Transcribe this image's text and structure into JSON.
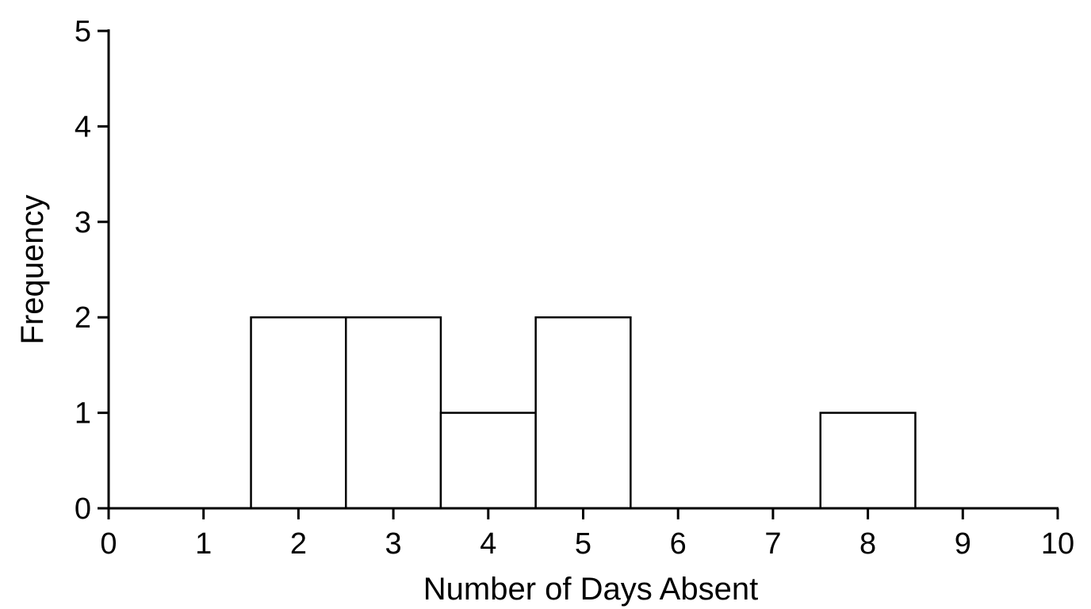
{
  "chart_data": {
    "type": "bar",
    "subtype": "histogram",
    "title": "",
    "xlabel": "Number of Days Absent",
    "ylabel": "Frequency",
    "xlim": [
      0,
      10
    ],
    "ylim": [
      0,
      5
    ],
    "x_ticks": [
      "0",
      "1",
      "2",
      "3",
      "4",
      "5",
      "6",
      "7",
      "8",
      "9",
      "10"
    ],
    "y_ticks": [
      "0",
      "1",
      "2",
      "3",
      "4",
      "5"
    ],
    "bin_width": 1,
    "categories": [
      2,
      3,
      4,
      5,
      8
    ],
    "values": [
      2,
      2,
      1,
      2,
      1
    ],
    "grid": false,
    "legend": "none",
    "bar_fill": "#ffffff",
    "bar_stroke": "#000000"
  }
}
